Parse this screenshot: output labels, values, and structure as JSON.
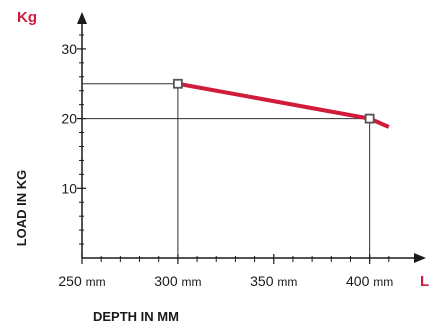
{
  "chart_data": {
    "type": "line",
    "title": "",
    "xlabel": "DEPTH IN MM",
    "ylabel": "LOAD IN KG",
    "x_unit_label": "L",
    "y_unit_label": "Kg",
    "x_tick_unit": "mm",
    "xlim": [
      250,
      420
    ],
    "ylim": [
      0,
      33
    ],
    "x_ticks": [
      250,
      300,
      350,
      400
    ],
    "y_ticks": [
      10,
      20,
      30
    ],
    "series": [
      {
        "x": [
          300,
          400,
          410
        ],
        "y": [
          25,
          20,
          18.8
        ],
        "color": "#d01c3a"
      }
    ],
    "markers": [
      {
        "x": 300,
        "y": 25
      },
      {
        "x": 400,
        "y": 20
      }
    ],
    "grid": false,
    "colors": {
      "accent": "#d01c3a",
      "axis": "#1a1a1a",
      "guide": "#333333"
    }
  }
}
